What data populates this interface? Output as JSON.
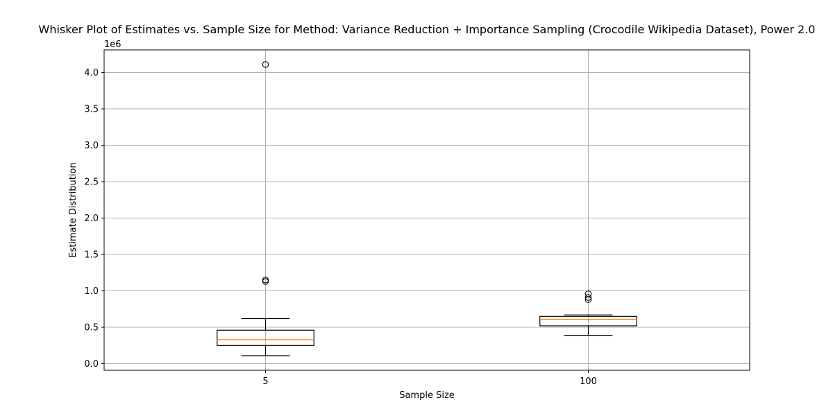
{
  "chart_data": {
    "type": "boxplot",
    "title": "Whisker Plot of Estimates vs. Sample Size for Method: Variance Reduction + Importance Sampling (Crocodile Wikipedia Dataset), Power 2.0",
    "xlabel": "Sample Size",
    "ylabel": "Estimate Distribution",
    "y_offset_label": "1e6",
    "ylim": [
      -0.09,
      4.31
    ],
    "yticks": [
      0.0,
      0.5,
      1.0,
      1.5,
      2.0,
      2.5,
      3.0,
      3.5,
      4.0
    ],
    "ytick_labels": [
      "0.0",
      "0.5",
      "1.0",
      "1.5",
      "2.0",
      "2.5",
      "3.0",
      "3.5",
      "4.0"
    ],
    "grid": true,
    "categories": [
      "5",
      "100"
    ],
    "boxes": [
      {
        "whislo": 0.11,
        "q1": 0.25,
        "med": 0.33,
        "q3": 0.46,
        "whishi": 0.62,
        "fliers": [
          1.13,
          1.15,
          4.11
        ]
      },
      {
        "whislo": 0.39,
        "q1": 0.52,
        "med": 0.61,
        "q3": 0.65,
        "whishi": 0.67,
        "fliers": [
          0.88,
          0.91,
          0.96
        ]
      }
    ],
    "colors": {
      "median": "#ff7f0e",
      "box": "#000000",
      "grid": "#b0b0b0"
    }
  }
}
